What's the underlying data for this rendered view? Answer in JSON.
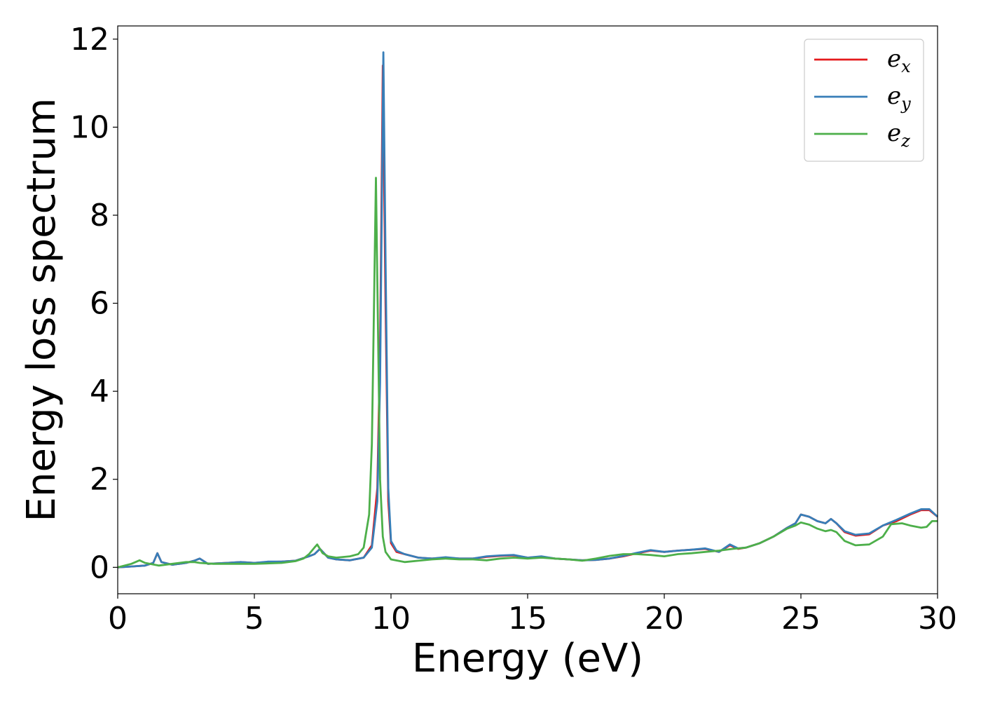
{
  "chart_data": {
    "type": "line",
    "title": "",
    "xlabel": "Energy (eV)",
    "ylabel": "Energy loss spectrum",
    "xlim": [
      0,
      30
    ],
    "ylim": [
      -0.6,
      12.3
    ],
    "x_ticks": [
      0,
      5,
      10,
      15,
      20,
      25,
      30
    ],
    "y_ticks": [
      0,
      2,
      4,
      6,
      8,
      10,
      12
    ],
    "grid": false,
    "legend_position": "top-right",
    "series": [
      {
        "name": "e_x",
        "legend_base": "e",
        "legend_sub": "x",
        "color": "#e41a1c",
        "x": [
          0,
          0.5,
          1.0,
          1.3,
          1.45,
          1.6,
          2.0,
          2.5,
          2.8,
          3.0,
          3.3,
          4.0,
          4.5,
          5.0,
          5.5,
          6.0,
          6.5,
          7.0,
          7.2,
          7.4,
          7.7,
          8.0,
          8.5,
          9.0,
          9.3,
          9.5,
          9.6,
          9.65,
          9.7,
          9.8,
          9.9,
          10.0,
          10.2,
          10.5,
          11.0,
          11.5,
          12.0,
          12.5,
          13.0,
          13.5,
          14.0,
          14.5,
          15.0,
          15.5,
          16.0,
          16.5,
          17.0,
          17.5,
          18.0,
          18.5,
          19.0,
          19.5,
          20.0,
          20.5,
          21.0,
          21.5,
          22.0,
          22.4,
          22.7,
          23.0,
          23.5,
          24.0,
          24.5,
          24.8,
          25.0,
          25.3,
          25.6,
          25.9,
          26.1,
          26.3,
          26.6,
          27.0,
          27.5,
          28.0,
          28.5,
          29.0,
          29.4,
          29.7,
          30.0
        ],
        "y": [
          0.0,
          0.02,
          0.04,
          0.1,
          0.32,
          0.12,
          0.06,
          0.1,
          0.15,
          0.2,
          0.08,
          0.1,
          0.12,
          0.1,
          0.12,
          0.13,
          0.15,
          0.25,
          0.3,
          0.42,
          0.22,
          0.18,
          0.16,
          0.22,
          0.5,
          1.8,
          5.0,
          8.0,
          11.4,
          6.0,
          1.5,
          0.55,
          0.35,
          0.3,
          0.22,
          0.2,
          0.22,
          0.2,
          0.2,
          0.24,
          0.26,
          0.27,
          0.22,
          0.24,
          0.2,
          0.18,
          0.16,
          0.17,
          0.2,
          0.25,
          0.32,
          0.38,
          0.35,
          0.38,
          0.4,
          0.42,
          0.35,
          0.5,
          0.42,
          0.45,
          0.55,
          0.7,
          0.9,
          1.0,
          1.2,
          1.15,
          1.05,
          1.0,
          1.1,
          1.0,
          0.8,
          0.72,
          0.75,
          0.95,
          1.05,
          1.2,
          1.3,
          1.3,
          1.15
        ]
      },
      {
        "name": "e_y",
        "legend_base": "e",
        "legend_sub": "y",
        "color": "#377eb8",
        "x": [
          0,
          0.5,
          1.0,
          1.3,
          1.45,
          1.6,
          2.0,
          2.5,
          2.8,
          3.0,
          3.3,
          4.0,
          4.5,
          5.0,
          5.5,
          6.0,
          6.5,
          7.0,
          7.2,
          7.4,
          7.7,
          8.0,
          8.5,
          9.0,
          9.3,
          9.5,
          9.6,
          9.67,
          9.72,
          9.8,
          9.9,
          10.0,
          10.2,
          10.5,
          11.0,
          11.5,
          12.0,
          12.5,
          13.0,
          13.5,
          14.0,
          14.5,
          15.0,
          15.5,
          16.0,
          16.5,
          17.0,
          17.5,
          18.0,
          18.5,
          19.0,
          19.5,
          20.0,
          20.5,
          21.0,
          21.5,
          22.0,
          22.4,
          22.7,
          23.0,
          23.5,
          24.0,
          24.5,
          24.8,
          25.0,
          25.3,
          25.6,
          25.9,
          26.1,
          26.3,
          26.6,
          27.0,
          27.5,
          28.0,
          28.5,
          29.0,
          29.4,
          29.7,
          30.0
        ],
        "y": [
          0.0,
          0.02,
          0.04,
          0.1,
          0.32,
          0.12,
          0.06,
          0.1,
          0.15,
          0.2,
          0.08,
          0.1,
          0.12,
          0.1,
          0.13,
          0.13,
          0.15,
          0.25,
          0.3,
          0.42,
          0.22,
          0.18,
          0.16,
          0.22,
          0.45,
          1.5,
          4.2,
          8.5,
          11.7,
          7.0,
          1.8,
          0.6,
          0.38,
          0.3,
          0.22,
          0.2,
          0.23,
          0.2,
          0.2,
          0.25,
          0.27,
          0.28,
          0.22,
          0.25,
          0.2,
          0.18,
          0.16,
          0.17,
          0.2,
          0.26,
          0.33,
          0.39,
          0.35,
          0.38,
          0.4,
          0.43,
          0.35,
          0.52,
          0.43,
          0.45,
          0.55,
          0.7,
          0.9,
          1.0,
          1.2,
          1.15,
          1.05,
          1.0,
          1.1,
          1.0,
          0.82,
          0.74,
          0.77,
          0.95,
          1.08,
          1.22,
          1.32,
          1.32,
          1.15
        ]
      },
      {
        "name": "e_z",
        "legend_base": "e",
        "legend_sub": "z",
        "color": "#4daf4a",
        "x": [
          0,
          0.5,
          0.8,
          1.0,
          1.5,
          2.0,
          2.5,
          2.8,
          3.0,
          3.5,
          4.0,
          5.0,
          6.0,
          6.5,
          6.8,
          7.0,
          7.2,
          7.3,
          7.5,
          7.7,
          8.0,
          8.5,
          8.8,
          9.0,
          9.2,
          9.3,
          9.38,
          9.45,
          9.5,
          9.6,
          9.7,
          9.8,
          10.0,
          10.5,
          11.0,
          11.5,
          12.0,
          12.5,
          13.0,
          13.5,
          14.0,
          14.5,
          15.0,
          15.5,
          16.0,
          16.5,
          17.0,
          17.5,
          18.0,
          18.5,
          19.0,
          19.5,
          20.0,
          20.5,
          21.0,
          21.5,
          22.0,
          22.5,
          23.0,
          23.5,
          24.0,
          24.5,
          24.8,
          25.0,
          25.3,
          25.6,
          25.9,
          26.1,
          26.3,
          26.6,
          27.0,
          27.5,
          28.0,
          28.3,
          28.7,
          29.0,
          29.4,
          29.6,
          29.8,
          30.0
        ],
        "y": [
          0.0,
          0.08,
          0.16,
          0.1,
          0.04,
          0.08,
          0.12,
          0.12,
          0.1,
          0.08,
          0.08,
          0.08,
          0.1,
          0.14,
          0.2,
          0.3,
          0.45,
          0.52,
          0.32,
          0.25,
          0.22,
          0.25,
          0.3,
          0.45,
          1.2,
          2.8,
          6.0,
          8.85,
          6.5,
          2.0,
          0.7,
          0.35,
          0.18,
          0.12,
          0.15,
          0.18,
          0.2,
          0.18,
          0.18,
          0.16,
          0.2,
          0.22,
          0.2,
          0.22,
          0.2,
          0.18,
          0.15,
          0.2,
          0.26,
          0.3,
          0.3,
          0.28,
          0.25,
          0.3,
          0.32,
          0.35,
          0.38,
          0.42,
          0.45,
          0.55,
          0.7,
          0.88,
          0.95,
          1.02,
          0.97,
          0.88,
          0.82,
          0.85,
          0.8,
          0.6,
          0.5,
          0.52,
          0.7,
          0.98,
          1.0,
          0.95,
          0.9,
          0.92,
          1.05,
          1.05
        ]
      }
    ]
  }
}
